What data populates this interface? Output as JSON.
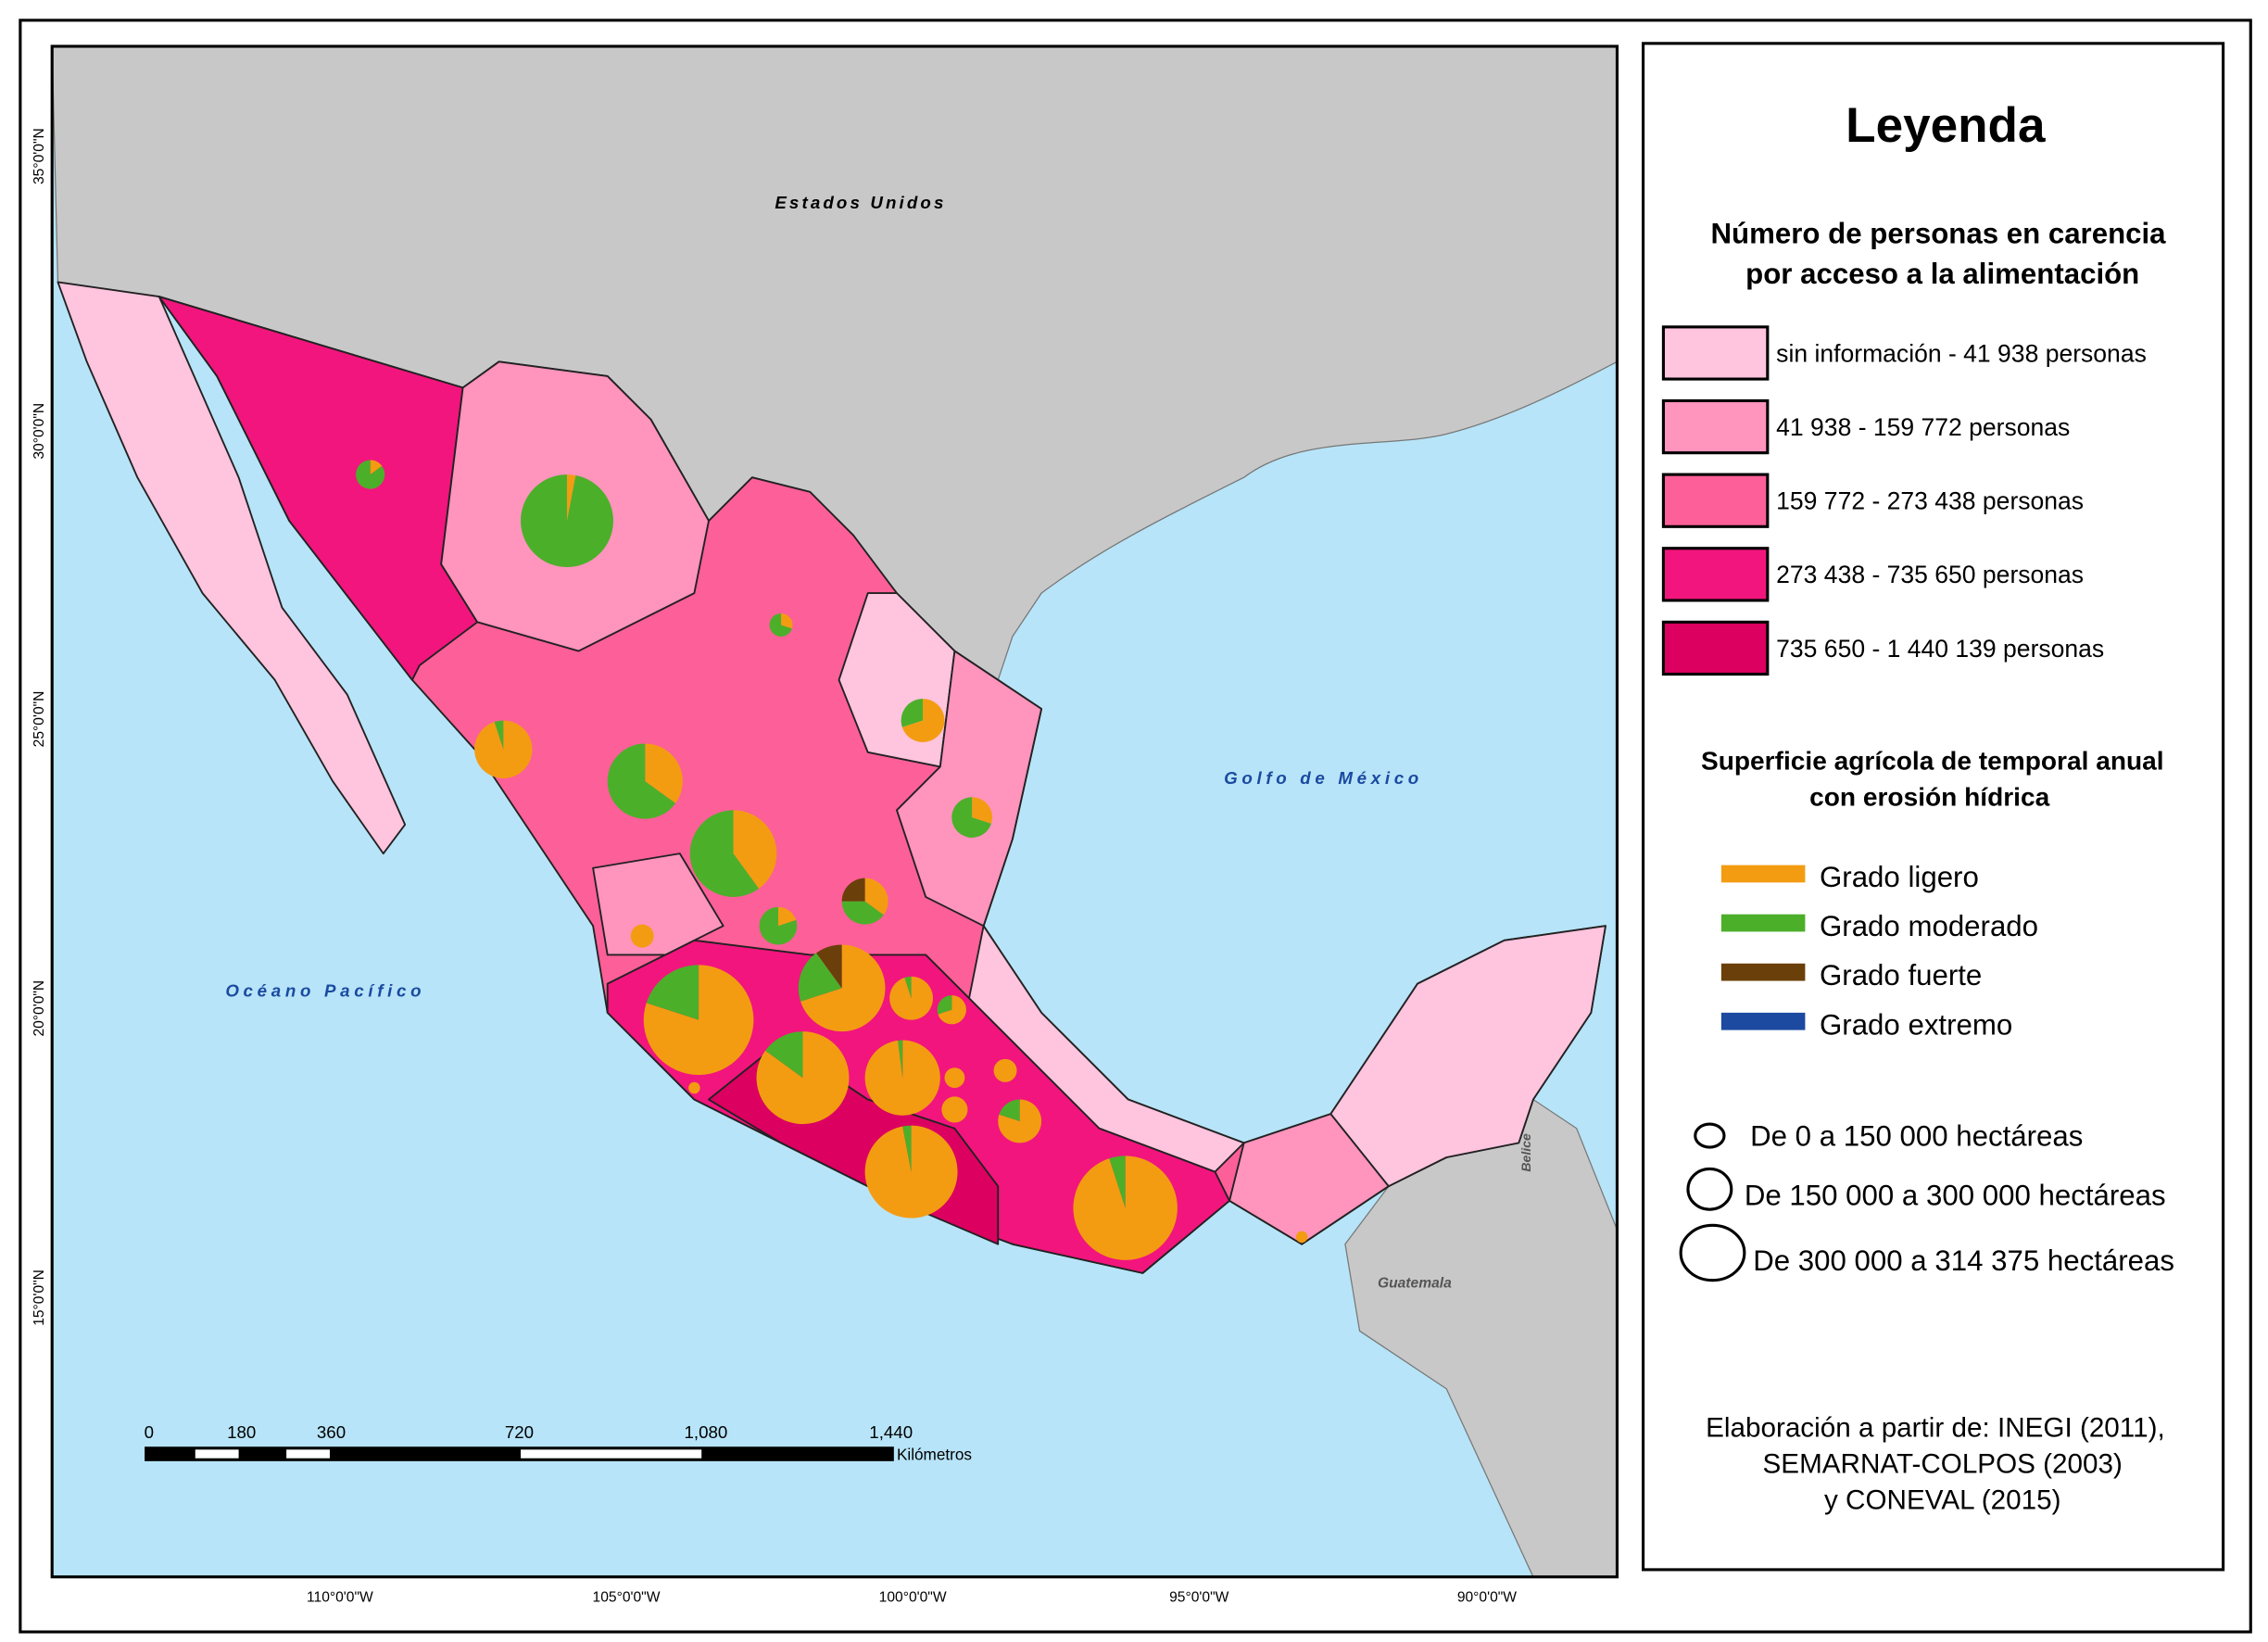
{
  "map": {
    "labels": {
      "usa": "Estados Unidos",
      "gulf": "Golfo de México",
      "pacific": "Océano Pacífico",
      "belize": "Belice",
      "guatemala": "Guatemala"
    },
    "lat_ticks": [
      "35°0'0\"N",
      "30°0'0\"N",
      "25°0'0\"N",
      "20°0'0\"N",
      "15°0'0\"N"
    ],
    "lon_ticks": [
      "110°0'0\"W",
      "105°0'0\"W",
      "100°0'0\"W",
      "95°0'0\"W",
      "90°0'0\"W"
    ],
    "scale_bar": {
      "ticks": [
        "0",
        "180",
        "360",
        "720",
        "1,080",
        "1,440"
      ],
      "unit": "Kilómetros"
    },
    "colors": {
      "land_other": "#c8c8c8",
      "water": "#b7e4f8",
      "class0": "#ffc4de",
      "class1": "#ff94bd",
      "class2": "#fd5f98",
      "class3": "#f2157d",
      "class4": "#dc0060",
      "ligero": "#f39c12",
      "moderado": "#4caf2a",
      "fuerte": "#6b3f0a",
      "extremo": "#1b4aa0"
    },
    "erosion_pies": [
      {
        "ligero": 0.15,
        "moderado": 0.85,
        "fuerte": 0
      },
      {
        "ligero": 0.03,
        "moderado": 0.97,
        "fuerte": 0
      },
      {
        "ligero": 0.3,
        "moderado": 0.7,
        "fuerte": 0
      },
      {
        "ligero": 0.95,
        "moderado": 0.05,
        "fuerte": 0
      },
      {
        "ligero": 0.35,
        "moderado": 0.65,
        "fuerte": 0
      },
      {
        "ligero": 0.4,
        "moderado": 0.6,
        "fuerte": 0
      },
      {
        "ligero": 0.7,
        "moderado": 0.3,
        "fuerte": 0
      },
      {
        "ligero": 0.3,
        "moderado": 0.7,
        "fuerte": 0
      },
      {
        "ligero": 0.35,
        "moderado": 0.4,
        "fuerte": 0.25
      },
      {
        "ligero": 0.2,
        "moderado": 0.8,
        "fuerte": 0
      },
      {
        "ligero": 1,
        "moderado": 0,
        "fuerte": 0
      },
      {
        "ligero": 0.7,
        "moderado": 0.2,
        "fuerte": 0.1
      },
      {
        "ligero": 0.8,
        "moderado": 0.2,
        "fuerte": 0
      },
      {
        "ligero": 0.85,
        "moderado": 0.15,
        "fuerte": 0
      },
      {
        "ligero": 0.95,
        "moderado": 0.05,
        "fuerte": 0
      },
      {
        "ligero": 0.7,
        "moderado": 0.3,
        "fuerte": 0
      },
      {
        "ligero": 0.98,
        "moderado": 0.02,
        "fuerte": 0
      },
      {
        "ligero": 1,
        "moderado": 0,
        "fuerte": 0
      },
      {
        "ligero": 1,
        "moderado": 0,
        "fuerte": 0
      },
      {
        "ligero": 1,
        "moderado": 0,
        "fuerte": 0
      },
      {
        "ligero": 0.8,
        "moderado": 0.2,
        "fuerte": 0
      },
      {
        "ligero": 0.97,
        "moderado": 0.03,
        "fuerte": 0
      },
      {
        "ligero": 0.95,
        "moderado": 0.05,
        "fuerte": 0
      },
      {
        "ligero": 1,
        "moderado": 0,
        "fuerte": 0
      },
      {
        "ligero": 1,
        "moderado": 0,
        "fuerte": 0
      }
    ]
  },
  "legend": {
    "title": "Leyenda",
    "choropleth_title_1": "Número de personas en carencia",
    "choropleth_title_2": "por acceso a la alimentación",
    "classes": [
      {
        "label": "sin información - 41 938 personas",
        "color": "#ffc4de"
      },
      {
        "label": "41 938 - 159 772 personas",
        "color": "#ff94bd"
      },
      {
        "label": "159 772 - 273 438 personas",
        "color": "#fd5f98"
      },
      {
        "label": "273 438 - 735 650 personas",
        "color": "#f2157d"
      },
      {
        "label": "735 650 - 1 440 139 personas",
        "color": "#dc0060"
      }
    ],
    "erosion_title_1": "Superficie agrícola de temporal anual",
    "erosion_title_2": "con erosión hídrica",
    "erosion_classes": [
      {
        "label": "Grado ligero",
        "color": "#f39c12"
      },
      {
        "label": "Grado moderado",
        "color": "#4caf2a"
      },
      {
        "label": "Grado fuerte",
        "color": "#6b3f0a"
      },
      {
        "label": "Grado extremo",
        "color": "#1b4aa0"
      }
    ],
    "sizes": [
      {
        "label": "De 0 a 150 000 hectáreas"
      },
      {
        "label": "De 150 000 a 300 000 hectáreas"
      },
      {
        "label": "De 300 000 a 314 375 hectáreas"
      }
    ],
    "source_1": "Elaboración a partir de: INEGI (2011),",
    "source_2": "SEMARNAT-COLPOS (2003)",
    "source_3": "y CONEVAL (2015)"
  }
}
